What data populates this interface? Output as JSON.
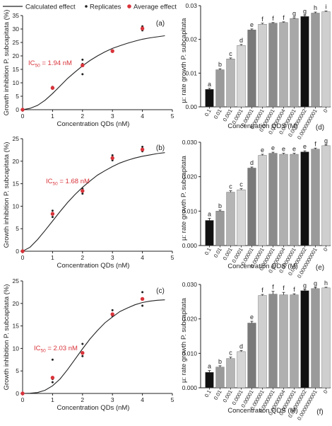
{
  "legend": {
    "calculated": "Calculated effect",
    "replicates": "Replicates",
    "average": "Average effect"
  },
  "colors": {
    "curve": "#222222",
    "replicate": "#222222",
    "average": "#d9333a",
    "ic50": "#d9333a"
  },
  "chart_data": [
    {
      "id": "a",
      "type": "scatter",
      "panel_label": "(a)",
      "xlabel": "Concentration QDs (nM)",
      "ylabel": "Growth inhibition P. subcapitata (%)",
      "xlim": [
        0,
        5
      ],
      "ylim": [
        0,
        35
      ],
      "xticks": [
        0,
        1,
        2,
        3,
        4,
        5
      ],
      "yticks": [
        0,
        5,
        10,
        15,
        20,
        25,
        30,
        35
      ],
      "annotation": "IC50 = 1.94 nM",
      "annotation_main": "IC",
      "annotation_sub": "50",
      "annotation_rest": " = 1.94 nM",
      "curve": {
        "x": [
          0,
          0.25,
          0.5,
          0.75,
          1,
          1.25,
          1.5,
          1.75,
          2,
          2.25,
          2.5,
          2.75,
          3,
          3.25,
          3.5,
          3.75,
          4,
          4.25,
          4.5,
          4.75
        ],
        "y": [
          0,
          0.5,
          1.6,
          3.5,
          6.0,
          8.8,
          11.6,
          14.0,
          16.3,
          18.3,
          20.0,
          21.5,
          22.8,
          23.8,
          24.7,
          25.5,
          26.2,
          26.7,
          27.1,
          27.5
        ]
      },
      "replicates": {
        "x": [
          1,
          1,
          2,
          2,
          2,
          3,
          3,
          4,
          4
        ],
        "y": [
          7.8,
          8.5,
          13.2,
          17.0,
          18.6,
          21.5,
          22.0,
          29.5,
          31.0
        ]
      },
      "average": {
        "x": [
          0,
          1,
          2,
          3,
          4
        ],
        "y": [
          0,
          8.1,
          16.5,
          21.8,
          30.2
        ]
      }
    },
    {
      "id": "b",
      "type": "scatter",
      "panel_label": "(b)",
      "xlabel": "Concentration QDs (nM)",
      "ylabel": "Growth inhibition P. subcapitata (%)",
      "xlim": [
        0,
        5
      ],
      "ylim": [
        0,
        25
      ],
      "xticks": [
        0,
        1,
        2,
        3,
        4,
        5
      ],
      "yticks": [
        0,
        5,
        10,
        15,
        20,
        25
      ],
      "annotation": "IC50 = 1.68 nM",
      "annotation_main": "IC",
      "annotation_sub": "50",
      "annotation_rest": " = 1.68 nM",
      "curve": {
        "x": [
          0,
          0.25,
          0.5,
          0.75,
          1,
          1.25,
          1.5,
          1.75,
          2,
          2.25,
          2.5,
          2.75,
          3,
          3.25,
          3.5,
          3.75,
          4,
          4.25,
          4.5,
          4.75
        ],
        "y": [
          0,
          0.9,
          2.6,
          4.6,
          6.7,
          8.8,
          10.8,
          12.6,
          14.2,
          15.6,
          16.9,
          17.9,
          18.8,
          19.6,
          20.2,
          20.7,
          21.1,
          21.4,
          21.7,
          21.9
        ]
      },
      "replicates": {
        "x": [
          1,
          1,
          1,
          2,
          2,
          2,
          3,
          3,
          4,
          4
        ],
        "y": [
          7.6,
          8.2,
          9.0,
          12.8,
          13.3,
          13.9,
          20.2,
          21.3,
          22.2,
          23.2
        ]
      },
      "average": {
        "x": [
          0,
          1,
          2,
          3,
          4
        ],
        "y": [
          0,
          8.3,
          13.4,
          20.7,
          22.6
        ]
      }
    },
    {
      "id": "c",
      "type": "scatter",
      "panel_label": "(c)",
      "xlabel": "Concentration QDs (nM)",
      "ylabel": "Growth inhibition P. subcapitata (%)",
      "xlim": [
        0,
        5
      ],
      "ylim": [
        0,
        25
      ],
      "xticks": [
        0,
        1,
        2,
        3,
        4,
        5
      ],
      "yticks": [
        0,
        5,
        10,
        15,
        20,
        25
      ],
      "annotation": "IC50 = 2.03 nM",
      "annotation_main": "IC",
      "annotation_sub": "50",
      "annotation_rest": " = 2.03 nM",
      "curve": {
        "x": [
          0,
          0.25,
          0.5,
          0.75,
          1,
          1.25,
          1.5,
          1.75,
          2,
          2.25,
          2.5,
          2.75,
          3,
          3.25,
          3.5,
          3.75,
          4,
          4.25,
          4.5,
          4.75
        ],
        "y": [
          0,
          0.05,
          0.2,
          0.7,
          1.7,
          3.2,
          5.3,
          7.6,
          9.9,
          12.1,
          14.0,
          15.7,
          17.0,
          18.2,
          19.0,
          19.7,
          20.2,
          20.5,
          20.7,
          20.8
        ]
      },
      "replicates": {
        "x": [
          1,
          1,
          1,
          2,
          2,
          2,
          3,
          3,
          4,
          4
        ],
        "y": [
          2.5,
          3.2,
          7.5,
          8.3,
          9.0,
          11.0,
          17.2,
          18.5,
          19.5,
          22.5
        ]
      },
      "average": {
        "x": [
          0,
          1,
          2,
          3,
          4
        ],
        "y": [
          0,
          3.5,
          9.0,
          17.6,
          21.0
        ]
      }
    },
    {
      "id": "d",
      "type": "bar",
      "panel_label": "(d)",
      "xlabel": "Concentration QDS (M)",
      "ylabel": "µ: rate growth P. subcapitata",
      "ylim": [
        0,
        0.03
      ],
      "yticks": [
        "0.00",
        "0.01",
        "0.02",
        "0.03"
      ],
      "categories": [
        "0.1",
        "0.01",
        "0.001",
        "0.0001",
        "0.00001",
        "0.000001",
        "0.0000001",
        "0.00000004",
        "0.00000001",
        "0.000000002",
        "0.0000000001",
        "0"
      ],
      "values": [
        0.0052,
        0.011,
        0.0142,
        0.0182,
        0.0228,
        0.0245,
        0.0248,
        0.025,
        0.0262,
        0.0268,
        0.0278,
        0.0282
      ],
      "errors": [
        0.0003,
        0.0003,
        0.0003,
        0.0003,
        0.0003,
        0.0003,
        0.0002,
        0.0002,
        0.0002,
        0.0003,
        0.0003,
        0.0002
      ],
      "letters": [
        "a",
        "b",
        "c",
        "d",
        "e",
        "f",
        "f",
        "f",
        "g",
        "g",
        "h",
        "i"
      ],
      "bar_colors": [
        "#111111",
        "#9a9a9a",
        "#b5b5b5",
        "#d6d6d6",
        "#7a7a7a",
        "#cfcfcf",
        "#8c8c8c",
        "#b0b0b0",
        "#a8a8a8",
        "#111111",
        "#9a9a9a",
        "#cfcfcf"
      ]
    },
    {
      "id": "e",
      "type": "bar",
      "panel_label": "(e)",
      "xlabel": "Concentration QDS (M)",
      "ylabel": "µ: rate growth P. subcapitata",
      "ylim": [
        0,
        0.03
      ],
      "yticks": [
        "0.000",
        "0.010",
        "0.020",
        "0.030"
      ],
      "categories": [
        "0.1",
        "0.01",
        "0.001",
        "0.0001",
        "0.00001",
        "0.000001",
        "0.0000001",
        "0.00000004",
        "0.00000001",
        "0.000000002",
        "0.0000000001",
        "0"
      ],
      "values": [
        0.0073,
        0.01,
        0.0155,
        0.0162,
        0.0225,
        0.0262,
        0.0268,
        0.0265,
        0.0265,
        0.0272,
        0.028,
        0.029
      ],
      "errors": [
        0.0006,
        0.0003,
        0.0004,
        0.0003,
        0.0003,
        0.0003,
        0.0003,
        0.0003,
        0.0003,
        0.0003,
        0.0003,
        0.0002
      ],
      "letters": [
        "a",
        "b",
        "c",
        "c",
        "d",
        "e",
        "e",
        "e",
        "e",
        "e",
        "f",
        "g"
      ],
      "bar_colors": [
        "#111111",
        "#9a9a9a",
        "#b5b5b5",
        "#d6d6d6",
        "#7a7a7a",
        "#cfcfcf",
        "#8c8c8c",
        "#b0b0b0",
        "#a8a8a8",
        "#111111",
        "#9a9a9a",
        "#cfcfcf"
      ]
    },
    {
      "id": "f",
      "type": "bar",
      "panel_label": "(f)",
      "xlabel": "Concentration QDS (M)",
      "ylabel": "µ: rate growth P. subcapitata",
      "ylim": [
        0,
        0.03
      ],
      "yticks": [
        "0.000",
        "0.010",
        "0.020",
        "0.030"
      ],
      "categories": [
        "0.1",
        "0.01",
        "0.001",
        "0.0001",
        "0.00001",
        "0.000001",
        "0.0000001",
        "0.00000004",
        "0.00000001",
        "0.000000002",
        "0.0000000001",
        "0"
      ],
      "values": [
        0.0045,
        0.006,
        0.0085,
        0.0105,
        0.0188,
        0.0268,
        0.0272,
        0.027,
        0.027,
        0.0282,
        0.0288,
        0.029
      ],
      "errors": [
        0.0005,
        0.0004,
        0.0004,
        0.0003,
        0.0005,
        0.0003,
        0.0008,
        0.0007,
        0.0003,
        0.0003,
        0.0003,
        0.0002
      ],
      "letters": [
        "a",
        "b",
        "c",
        "d",
        "e",
        "f",
        "f",
        "f",
        "f",
        "g",
        "g",
        "h"
      ],
      "bar_colors": [
        "#111111",
        "#9a9a9a",
        "#b5b5b5",
        "#d6d6d6",
        "#7a7a7a",
        "#cfcfcf",
        "#8c8c8c",
        "#b0b0b0",
        "#a8a8a8",
        "#111111",
        "#9a9a9a",
        "#cfcfcf"
      ]
    }
  ]
}
